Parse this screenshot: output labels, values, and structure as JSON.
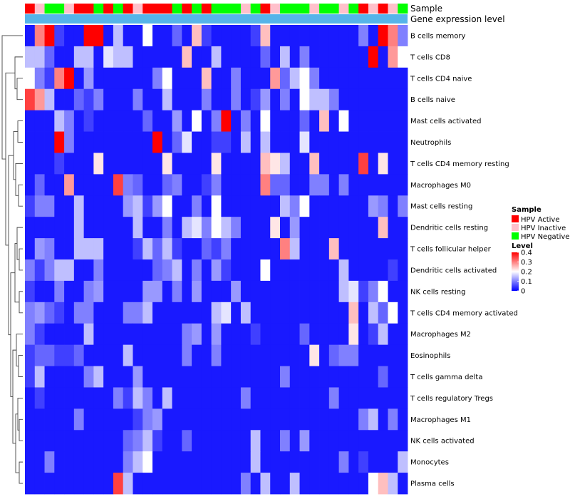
{
  "chart_data": {
    "type": "heatmap",
    "rows": [
      "B cells memory",
      "T cells CD8",
      "T cells CD4 naive",
      "B cells naive",
      "Mast cells activated",
      "Neutrophils",
      "T cells CD4 memory resting",
      "Macrophages M0",
      "Mast cells resting",
      "Dendritic cells resting",
      "T cells follicular helper",
      "Dendritic cells activated",
      "NK cells resting",
      "T cells CD4 memory activated",
      "Macrophages M2",
      "Eosinophils",
      "T cells gamma delta",
      "T cells regulatory  Tregs",
      "Macrophages M1",
      "NK cells activated",
      "Monocytes",
      "Plasma cells"
    ],
    "annotation_tracks": [
      "Sample",
      "Gene expression level"
    ],
    "sample_groups": [
      "Active",
      "Inactive",
      "Negative",
      "Negative",
      "Inactive",
      "Active",
      "Active",
      "Negative",
      "Active",
      "Negative",
      "Active",
      "Inactive",
      "Active",
      "Active",
      "Active",
      "Negative",
      "Active",
      "Negative",
      "Active",
      "Negative",
      "Negative",
      "Negative",
      "Inactive",
      "Negative",
      "Active",
      "Inactive",
      "Negative",
      "Negative",
      "Negative",
      "Inactive",
      "Negative",
      "Negative",
      "Inactive",
      "Negative",
      "Active",
      "Inactive",
      "Active",
      "Inactive",
      "Negative"
    ],
    "values": [
      [
        0.02,
        0.3,
        0.4,
        0.05,
        0.02,
        0.02,
        0.4,
        0.4,
        0.02,
        0.15,
        0.02,
        0.02,
        0.2,
        0.02,
        0.02,
        0.08,
        0.02,
        0.25,
        0.05,
        0.02,
        0.02,
        0.02,
        0.02,
        0.05,
        0.25,
        0.02,
        0.02,
        0.02,
        0.02,
        0.02,
        0.02,
        0.02,
        0.02,
        0.02,
        0.1,
        0.02,
        0.4,
        0.3,
        0.1
      ],
      [
        0.15,
        0.15,
        0.08,
        0.02,
        0.02,
        0.15,
        0.15,
        0.02,
        0.18,
        0.15,
        0.15,
        0.02,
        0.02,
        0.02,
        0.02,
        0.02,
        0.25,
        0.02,
        0.02,
        0.15,
        0.02,
        0.02,
        0.02,
        0.02,
        0.08,
        0.02,
        0.15,
        0.02,
        0.1,
        0.02,
        0.02,
        0.02,
        0.02,
        0.02,
        0.02,
        0.4,
        0.02,
        0.28,
        0.2
      ],
      [
        0.2,
        0.1,
        0.05,
        0.3,
        0.4,
        0.02,
        0.12,
        0.02,
        0.02,
        0.02,
        0.02,
        0.02,
        0.02,
        0.1,
        0.2,
        0.02,
        0.02,
        0.02,
        0.25,
        0.02,
        0.02,
        0.1,
        0.02,
        0.02,
        0.02,
        0.28,
        0.08,
        0.15,
        0.2,
        0.1,
        0.02,
        0.02,
        0.02,
        0.02,
        0.02,
        0.02,
        0.02,
        0.02,
        0.02
      ],
      [
        0.35,
        0.28,
        0.15,
        0.02,
        0.02,
        0.08,
        0.05,
        0.1,
        0.02,
        0.02,
        0.02,
        0.1,
        0.02,
        0.02,
        0.15,
        0.02,
        0.02,
        0.02,
        0.1,
        0.02,
        0.02,
        0.1,
        0.02,
        0.05,
        0.12,
        0.02,
        0.1,
        0.02,
        0.2,
        0.15,
        0.15,
        0.1,
        0.02,
        0.02,
        0.02,
        0.02,
        0.02,
        0.02,
        0.02
      ],
      [
        0.02,
        0.02,
        0.02,
        0.15,
        0.1,
        0.02,
        0.05,
        0.02,
        0.02,
        0.02,
        0.02,
        0.02,
        0.08,
        0.02,
        0.02,
        0.12,
        0.02,
        0.2,
        0.02,
        0.1,
        0.4,
        0.02,
        0.1,
        0.02,
        0.2,
        0.02,
        0.02,
        0.02,
        0.08,
        0.02,
        0.25,
        0.02,
        0.2,
        0.02,
        0.02,
        0.02,
        0.02,
        0.02,
        0.02
      ],
      [
        0.02,
        0.02,
        0.02,
        0.4,
        0.1,
        0.02,
        0.02,
        0.02,
        0.02,
        0.02,
        0.02,
        0.02,
        0.02,
        0.4,
        0.02,
        0.08,
        0.18,
        0.02,
        0.02,
        0.05,
        0.05,
        0.02,
        0.15,
        0.02,
        0.15,
        0.02,
        0.02,
        0.02,
        0.18,
        0.02,
        0.02,
        0.02,
        0.02,
        0.02,
        0.02,
        0.02,
        0.02,
        0.02,
        0.02
      ],
      [
        0.02,
        0.02,
        0.02,
        0.05,
        0.02,
        0.02,
        0.02,
        0.22,
        0.02,
        0.02,
        0.02,
        0.02,
        0.02,
        0.02,
        0.22,
        0.02,
        0.02,
        0.02,
        0.02,
        0.22,
        0.02,
        0.02,
        0.02,
        0.02,
        0.25,
        0.22,
        0.15,
        0.02,
        0.02,
        0.25,
        0.02,
        0.02,
        0.02,
        0.02,
        0.35,
        0.02,
        0.22,
        0.02,
        0.02
      ],
      [
        0.02,
        0.08,
        0.02,
        0.02,
        0.28,
        0.02,
        0.02,
        0.02,
        0.02,
        0.35,
        0.1,
        0.08,
        0.02,
        0.02,
        0.08,
        0.1,
        0.02,
        0.02,
        0.05,
        0.1,
        0.02,
        0.02,
        0.02,
        0.02,
        0.3,
        0.08,
        0.08,
        0.02,
        0.02,
        0.1,
        0.1,
        0.02,
        0.1,
        0.02,
        0.02,
        0.02,
        0.02,
        0.02,
        0.02
      ],
      [
        0.05,
        0.1,
        0.1,
        0.02,
        0.02,
        0.15,
        0.02,
        0.02,
        0.02,
        0.02,
        0.12,
        0.15,
        0.05,
        0.12,
        0.2,
        0.02,
        0.02,
        0.1,
        0.02,
        0.2,
        0.02,
        0.02,
        0.02,
        0.02,
        0.02,
        0.02,
        0.15,
        0.1,
        0.2,
        0.02,
        0.02,
        0.02,
        0.02,
        0.02,
        0.02,
        0.12,
        0.1,
        0.02,
        0.1
      ],
      [
        0.02,
        0.02,
        0.02,
        0.02,
        0.02,
        0.15,
        0.02,
        0.02,
        0.02,
        0.02,
        0.02,
        0.15,
        0.02,
        0.02,
        0.1,
        0.02,
        0.15,
        0.18,
        0.1,
        0.2,
        0.15,
        0.1,
        0.02,
        0.02,
        0.02,
        0.22,
        0.02,
        0.12,
        0.02,
        0.02,
        0.02,
        0.02,
        0.02,
        0.02,
        0.02,
        0.02,
        0.25,
        0.02,
        0.02
      ],
      [
        0.02,
        0.12,
        0.1,
        0.02,
        0.02,
        0.15,
        0.15,
        0.15,
        0.02,
        0.02,
        0.02,
        0.05,
        0.15,
        0.08,
        0.15,
        0.05,
        0.02,
        0.02,
        0.08,
        0.05,
        0.1,
        0.02,
        0.02,
        0.02,
        0.02,
        0.02,
        0.3,
        0.15,
        0.02,
        0.02,
        0.02,
        0.25,
        0.02,
        0.02,
        0.02,
        0.02,
        0.02,
        0.02,
        0.02
      ],
      [
        0.1,
        0.05,
        0.1,
        0.15,
        0.15,
        0.02,
        0.02,
        0.1,
        0.02,
        0.02,
        0.02,
        0.02,
        0.02,
        0.08,
        0.1,
        0.15,
        0.02,
        0.1,
        0.02,
        0.12,
        0.05,
        0.02,
        0.02,
        0.02,
        0.2,
        0.02,
        0.02,
        0.02,
        0.02,
        0.02,
        0.02,
        0.02,
        0.15,
        0.02,
        0.02,
        0.02,
        0.02,
        0.05,
        0.02
      ],
      [
        0.05,
        0.02,
        0.02,
        0.1,
        0.02,
        0.02,
        0.1,
        0.12,
        0.02,
        0.02,
        0.02,
        0.02,
        0.12,
        0.12,
        0.02,
        0.1,
        0.02,
        0.12,
        0.02,
        0.02,
        0.02,
        0.12,
        0.02,
        0.02,
        0.02,
        0.02,
        0.02,
        0.02,
        0.02,
        0.02,
        0.02,
        0.02,
        0.15,
        0.18,
        0.05,
        0.1,
        0.2,
        0.02,
        0.02
      ],
      [
        0.1,
        0.12,
        0.08,
        0.05,
        0.02,
        0.1,
        0.1,
        0.02,
        0.02,
        0.02,
        0.1,
        0.1,
        0.15,
        0.02,
        0.02,
        0.02,
        0.02,
        0.02,
        0.02,
        0.15,
        0.18,
        0.02,
        0.15,
        0.02,
        0.02,
        0.02,
        0.02,
        0.02,
        0.02,
        0.02,
        0.02,
        0.02,
        0.02,
        0.25,
        0.02,
        0.15,
        0.08,
        0.2,
        0.02
      ],
      [
        0.1,
        0.05,
        0.02,
        0.02,
        0.02,
        0.02,
        0.15,
        0.02,
        0.02,
        0.02,
        0.02,
        0.02,
        0.02,
        0.02,
        0.02,
        0.02,
        0.1,
        0.12,
        0.02,
        0.12,
        0.02,
        0.02,
        0.02,
        0.05,
        0.02,
        0.02,
        0.02,
        0.02,
        0.08,
        0.02,
        0.02,
        0.02,
        0.02,
        0.22,
        0.02,
        0.05,
        0.15,
        0.02,
        0.02
      ],
      [
        0.05,
        0.08,
        0.08,
        0.05,
        0.05,
        0.08,
        0.02,
        0.02,
        0.02,
        0.02,
        0.15,
        0.02,
        0.02,
        0.02,
        0.02,
        0.02,
        0.1,
        0.02,
        0.02,
        0.1,
        0.02,
        0.02,
        0.02,
        0.02,
        0.02,
        0.02,
        0.02,
        0.02,
        0.02,
        0.22,
        0.02,
        0.08,
        0.1,
        0.1,
        0.02,
        0.02,
        0.02,
        0.02,
        0.02
      ],
      [
        0.05,
        0.15,
        0.02,
        0.02,
        0.02,
        0.02,
        0.1,
        0.15,
        0.02,
        0.02,
        0.02,
        0.12,
        0.02,
        0.02,
        0.02,
        0.02,
        0.02,
        0.02,
        0.02,
        0.02,
        0.02,
        0.02,
        0.02,
        0.02,
        0.02,
        0.02,
        0.1,
        0.02,
        0.02,
        0.02,
        0.02,
        0.02,
        0.02,
        0.02,
        0.02,
        0.02,
        0.08,
        0.02,
        0.02
      ],
      [
        0.02,
        0.05,
        0.02,
        0.02,
        0.02,
        0.02,
        0.02,
        0.02,
        0.02,
        0.1,
        0.05,
        0.15,
        0.1,
        0.02,
        0.15,
        0.02,
        0.02,
        0.02,
        0.02,
        0.02,
        0.02,
        0.02,
        0.1,
        0.02,
        0.02,
        0.02,
        0.02,
        0.02,
        0.02,
        0.02,
        0.02,
        0.1,
        0.02,
        0.02,
        0.02,
        0.02,
        0.02,
        0.02,
        0.02
      ],
      [
        0.02,
        0.02,
        0.02,
        0.02,
        0.02,
        0.1,
        0.02,
        0.02,
        0.02,
        0.02,
        0.02,
        0.05,
        0.1,
        0.12,
        0.02,
        0.02,
        0.02,
        0.02,
        0.02,
        0.02,
        0.02,
        0.02,
        0.02,
        0.02,
        0.02,
        0.02,
        0.02,
        0.02,
        0.02,
        0.02,
        0.02,
        0.02,
        0.02,
        0.02,
        0.1,
        0.15,
        0.02,
        0.1,
        0.02
      ],
      [
        0.02,
        0.02,
        0.02,
        0.02,
        0.02,
        0.02,
        0.02,
        0.02,
        0.02,
        0.02,
        0.08,
        0.1,
        0.15,
        0.05,
        0.02,
        0.02,
        0.08,
        0.02,
        0.02,
        0.02,
        0.02,
        0.02,
        0.02,
        0.15,
        0.02,
        0.02,
        0.1,
        0.02,
        0.12,
        0.02,
        0.02,
        0.02,
        0.02,
        0.02,
        0.02,
        0.02,
        0.02,
        0.02,
        0.02
      ],
      [
        0.02,
        0.02,
        0.1,
        0.02,
        0.02,
        0.02,
        0.02,
        0.02,
        0.02,
        0.02,
        0.1,
        0.15,
        0.2,
        0.02,
        0.02,
        0.02,
        0.02,
        0.02,
        0.02,
        0.02,
        0.02,
        0.02,
        0.02,
        0.15,
        0.02,
        0.02,
        0.02,
        0.02,
        0.02,
        0.02,
        0.02,
        0.02,
        0.1,
        0.02,
        0.05,
        0.02,
        0.02,
        0.02,
        0.15
      ],
      [
        0.02,
        0.02,
        0.02,
        0.02,
        0.02,
        0.02,
        0.02,
        0.02,
        0.02,
        0.35,
        0.15,
        0.02,
        0.02,
        0.02,
        0.02,
        0.02,
        0.02,
        0.02,
        0.02,
        0.02,
        0.02,
        0.02,
        0.1,
        0.02,
        0.15,
        0.02,
        0.02,
        0.15,
        0.02,
        0.02,
        0.02,
        0.02,
        0.02,
        0.02,
        0.02,
        0.2,
        0.25,
        0.15,
        0.02
      ]
    ],
    "color_scale": {
      "min": 0,
      "mid": 0.2,
      "max": 0.4,
      "low_color": "#0000ff",
      "mid_color": "#ffffff",
      "high_color": "#ff0000"
    },
    "expression_track_color": "#56b4e9",
    "legend": {
      "sample_title": "Sample",
      "sample_items": [
        {
          "key": "Active",
          "label": "HPV Active",
          "color": "#ff0000"
        },
        {
          "key": "Inactive",
          "label": "HPV Inactive",
          "color": "#ffc0cb"
        },
        {
          "key": "Negative",
          "label": "HPV Negative",
          "color": "#00ff00"
        }
      ],
      "level_title": "Level",
      "level_ticks": [
        "0.4",
        "0.3",
        "0.2",
        "0.1",
        "0"
      ],
      "level_tick_values": [
        0.4,
        0.3,
        0.2,
        0.1,
        0
      ],
      "placement": "right"
    },
    "dendrogram": "rows"
  }
}
